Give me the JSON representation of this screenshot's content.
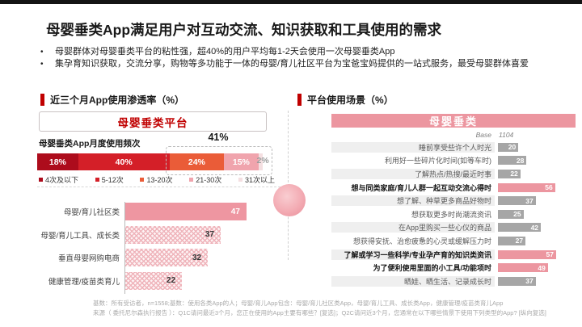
{
  "slide": {
    "title": "母婴垂类App满足用户对互动交流、知识获取和工具使用的需求",
    "bullets": [
      "母婴群体对母婴垂类平台的粘性强，超40%的用户平均每1-2天会使用一次母婴垂类App",
      "集孕育知识获取，交流分享，购物等多功能于一体的母婴/育儿社区平台为宝爸宝妈提供的一站式服务，最受母婴群体喜爱"
    ]
  },
  "left_panel": {
    "section_title": "近三个月App使用渗透率（%）",
    "platform_box": "母婴垂类平台",
    "freq_label": "母婴垂类App月度使用频次",
    "bracket_label": "41%"
  },
  "right_panel": {
    "section_title": "平台使用场景（%）",
    "header": "母婴垂类",
    "base_label": "Base",
    "base_value": "1104"
  },
  "footer": {
    "line1": "基数：所有受访者，n=1558;基数：使用各类App的人；母婴/育儿App包含：母婴/育儿社区类App，母婴/育儿工具、成长类App，健康管理/疫苗类育儿App",
    "line2": "来源（ 委托尼尔森执行报告 ）：Q1C请问最近3个月，您正在使用的App主要有哪些？[复选]；Q2C请问近3个月，您通常在以下哪些情景下使用下列类型的App? [纵向复选]"
  },
  "colors": {
    "accent_red": "#c00000",
    "pink": "#ec96a0",
    "solid_pink_bar": "#ee96a1",
    "grey_bar": "#a6a6a6",
    "row_stripe": "#efefef",
    "stacked_segments": [
      "#ad0c1c",
      "#d41f28",
      "#ea5c38",
      "#f0a4ad",
      "#f4dfe1"
    ],
    "footer_grey": "#a9a9a9"
  },
  "chart_data": [
    {
      "type": "bar",
      "name": "monthly-usage-frequency",
      "title": "母婴垂类App月度使用频次",
      "stacked": true,
      "unit": "%",
      "categories": [
        "4次及以下",
        "5-12次",
        "13-20次",
        "21-30次",
        "31次以上"
      ],
      "values": [
        18,
        40,
        24,
        15,
        2
      ],
      "annotation": {
        "label": "41%",
        "covers": [
          "13-20次",
          "21-30次",
          "31次以上"
        ]
      },
      "legend_position": "bottom"
    },
    {
      "type": "bar",
      "name": "app-penetration-last-3-months",
      "title": "近三个月App使用渗透率（%）",
      "orientation": "horizontal",
      "categories": [
        "母婴/育儿社区类",
        "母婴/育儿工具、成长类",
        "垂直母婴网购电商",
        "健康管理/疫苗类育儿"
      ],
      "values": [
        47,
        37,
        32,
        22
      ],
      "xlim": [
        0,
        50
      ]
    },
    {
      "type": "bar",
      "name": "platform-usage-scenarios",
      "title": "平台使用场景（%）",
      "orientation": "horizontal",
      "base": "1104",
      "categories": [
        "睡前享受些许个人时光",
        "利用好一些碎片化时间(如等车时)",
        "了解热点/热搜/最近时事",
        "想与同类家庭/育儿人群一起互动交流心得时",
        "想了解、种草更多商品好物时",
        "想获取更多时尚潮流资讯",
        "在App里购买一些心仪的商品",
        "想获得安抚、治愈疲惫的心灵或缓解压力时",
        "了解或学习一些科学/专业孕产育的知识类资讯",
        "为了便利使用里面的小工具/功能项时",
        "晒娃、晒生活、记录成长时"
      ],
      "values": [
        20,
        28,
        22,
        56,
        37,
        25,
        42,
        27,
        57,
        49,
        37
      ],
      "highlighted_indexes": [
        3,
        8,
        9
      ],
      "xlim": [
        0,
        60
      ]
    }
  ]
}
